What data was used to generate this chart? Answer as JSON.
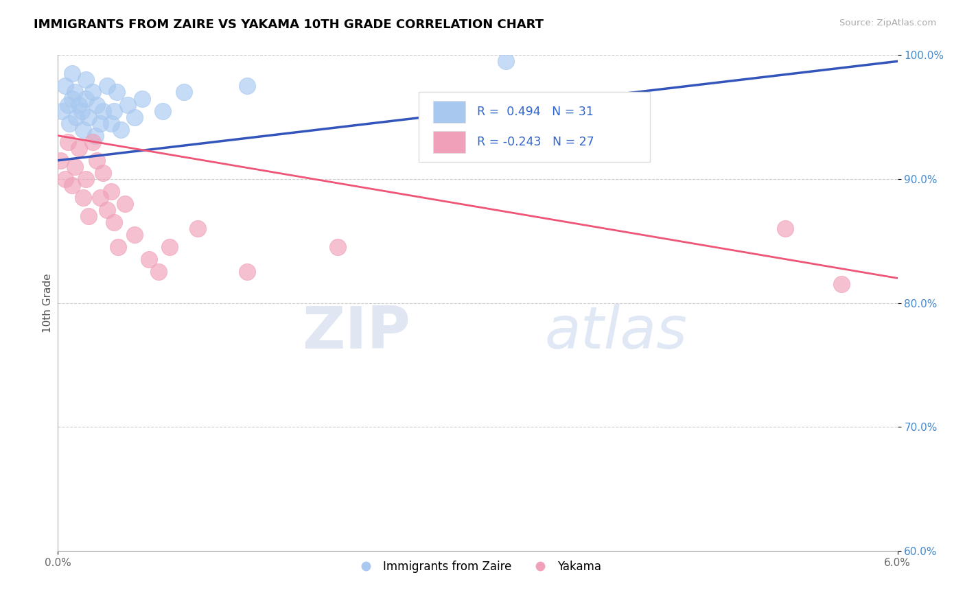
{
  "title": "IMMIGRANTS FROM ZAIRE VS YAKAMA 10TH GRADE CORRELATION CHART",
  "source": "Source: ZipAtlas.com",
  "ylabel": "10th Grade",
  "xlim": [
    0.0,
    6.0
  ],
  "ylim": [
    60.0,
    100.0
  ],
  "yticks": [
    60.0,
    70.0,
    80.0,
    90.0,
    100.0
  ],
  "yticklabels": [
    "60.0%",
    "70.0%",
    "80.0%",
    "90.0%",
    "100.0%"
  ],
  "legend_label1": "Immigrants from Zaire",
  "legend_label2": "Yakama",
  "r1": 0.494,
  "n1": 31,
  "r2": -0.243,
  "n2": 27,
  "blue_color": "#A8C8F0",
  "pink_color": "#F0A0B8",
  "blue_line_color": "#3355BB",
  "pink_line_color": "#EE5577",
  "watermark_zip": "ZIP",
  "watermark_atlas": "atlas",
  "blue_x": [
    0.03,
    0.05,
    0.07,
    0.08,
    0.1,
    0.1,
    0.12,
    0.13,
    0.15,
    0.17,
    0.18,
    0.2,
    0.2,
    0.22,
    0.25,
    0.27,
    0.28,
    0.3,
    0.32,
    0.35,
    0.38,
    0.4,
    0.42,
    0.45,
    0.5,
    0.55,
    0.6,
    0.75,
    0.9,
    1.35,
    3.2
  ],
  "blue_y": [
    95.5,
    97.5,
    96.0,
    94.5,
    96.5,
    98.5,
    97.0,
    95.0,
    96.0,
    95.5,
    94.0,
    96.5,
    98.0,
    95.0,
    97.0,
    93.5,
    96.0,
    94.5,
    95.5,
    97.5,
    94.5,
    95.5,
    97.0,
    94.0,
    96.0,
    95.0,
    96.5,
    95.5,
    97.0,
    97.5,
    99.5
  ],
  "pink_x": [
    0.02,
    0.05,
    0.07,
    0.1,
    0.12,
    0.15,
    0.18,
    0.2,
    0.22,
    0.25,
    0.28,
    0.3,
    0.32,
    0.35,
    0.38,
    0.4,
    0.43,
    0.48,
    0.55,
    0.65,
    0.72,
    0.8,
    1.0,
    1.35,
    2.0,
    5.2,
    5.6
  ],
  "pink_y": [
    91.5,
    90.0,
    93.0,
    89.5,
    91.0,
    92.5,
    88.5,
    90.0,
    87.0,
    93.0,
    91.5,
    88.5,
    90.5,
    87.5,
    89.0,
    86.5,
    84.5,
    88.0,
    85.5,
    83.5,
    82.5,
    84.5,
    86.0,
    82.5,
    84.5,
    86.0,
    81.5
  ]
}
